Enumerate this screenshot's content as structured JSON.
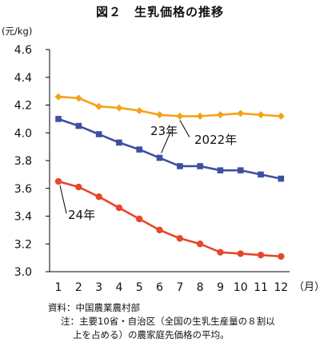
{
  "header": {
    "title": "図２　生乳価格の推移",
    "unit": "(元/kg)"
  },
  "footer": {
    "source": "資料：中国農業農村部",
    "note_line1": "注：主要10省・自治区（全国の生乳生産量の８割以",
    "note_line2": "上を占める）の農家庭先価格の平均。"
  },
  "chart_data": {
    "type": "line",
    "x": [
      1,
      2,
      3,
      4,
      5,
      6,
      7,
      8,
      9,
      10,
      11,
      12
    ],
    "x_tick_labels": [
      "1",
      "2",
      "3",
      "4",
      "5",
      "6",
      "7",
      "8",
      "9",
      "10",
      "11",
      "12"
    ],
    "x_unit": "（月）",
    "y_unit": "(元/kg)",
    "ylim": [
      3.0,
      4.6
    ],
    "y_ticks": [
      3.0,
      3.2,
      3.4,
      3.6,
      3.8,
      4.0,
      4.2,
      4.4,
      4.6
    ],
    "y_tick_labels": [
      "3.0",
      "3.2",
      "3.4",
      "3.6",
      "3.8",
      "4.0",
      "4.2",
      "4.4",
      "4.6"
    ],
    "grid": false,
    "legend": "none (series labeled inline with callouts)",
    "series": [
      {
        "name": "2022年",
        "color": "#F5A21B",
        "marker": "diamond",
        "values": [
          4.26,
          4.25,
          4.19,
          4.18,
          4.16,
          4.13,
          4.12,
          4.12,
          4.13,
          4.14,
          4.13,
          4.12
        ]
      },
      {
        "name": "23年",
        "color": "#3F4FA0",
        "marker": "square",
        "values": [
          4.1,
          4.05,
          3.99,
          3.93,
          3.88,
          3.82,
          3.76,
          3.76,
          3.73,
          3.73,
          3.7,
          3.67
        ]
      },
      {
        "name": "24年",
        "color": "#E8462C",
        "marker": "circle",
        "values": [
          3.65,
          3.61,
          3.54,
          3.46,
          3.38,
          3.3,
          3.24,
          3.2,
          3.14,
          3.13,
          3.12,
          3.11
        ]
      }
    ]
  }
}
